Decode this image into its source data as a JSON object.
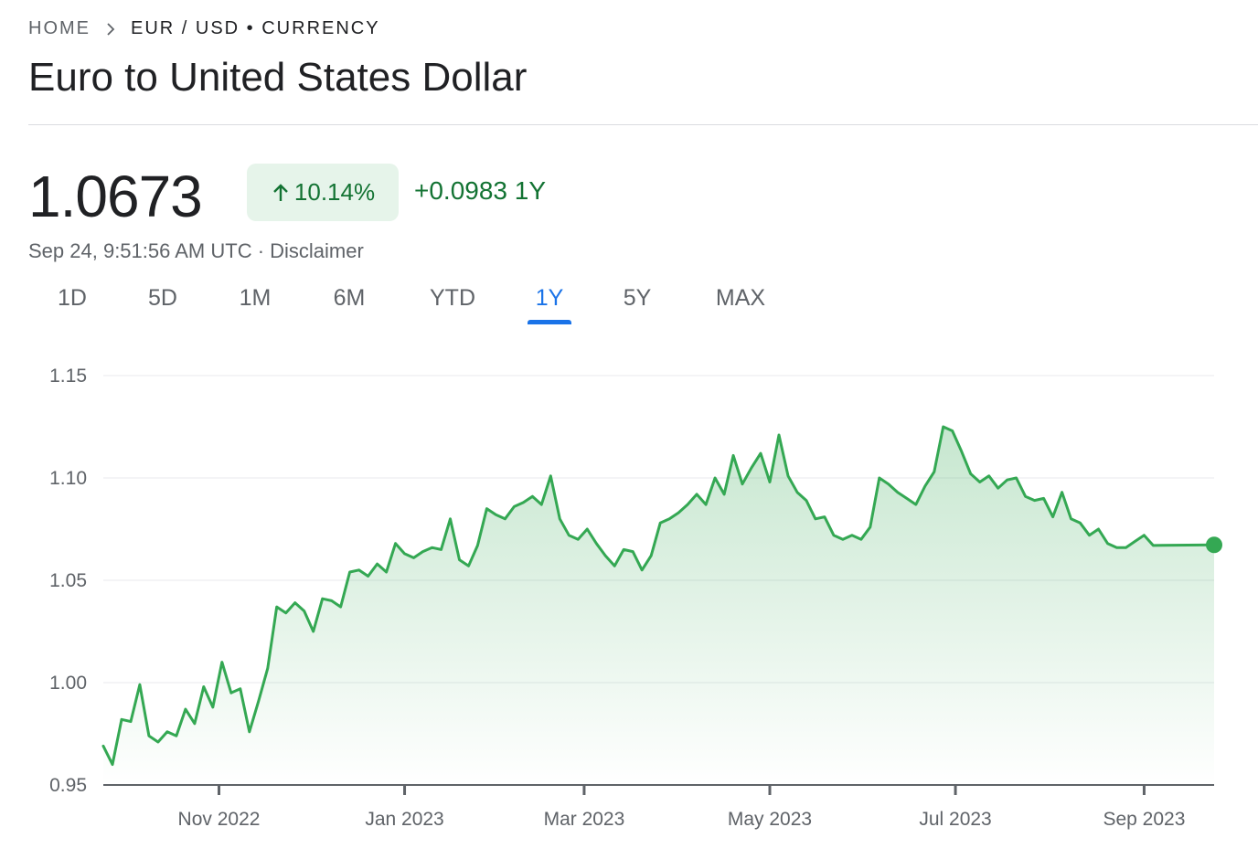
{
  "breadcrumb": {
    "home": "HOME",
    "current": "EUR / USD • CURRENCY"
  },
  "title": "Euro to United States Dollar",
  "quote": {
    "price": "1.0673",
    "change_percent": "10.14%",
    "change_abs": "+0.0983 1Y",
    "timestamp": "Sep 24, 9:51:56 AM UTC · ",
    "disclaimer": "Disclaimer"
  },
  "tabs": [
    {
      "label": "1D"
    },
    {
      "label": "5D"
    },
    {
      "label": "1M"
    },
    {
      "label": "6M"
    },
    {
      "label": "YTD"
    },
    {
      "label": "1Y"
    },
    {
      "label": "5Y"
    },
    {
      "label": "MAX"
    }
  ],
  "active_tab": "1Y",
  "colors": {
    "line": "#34a853",
    "positive_text": "#137333",
    "badge_bg": "#e6f4ea",
    "accent": "#1a73e8"
  },
  "icons": {
    "breadcrumb_separator": "chevron-right-icon",
    "change_direction": "arrow-up-icon"
  },
  "chart_data": {
    "type": "area",
    "title": "",
    "xlabel": "",
    "ylabel": "",
    "ylim": [
      0.95,
      1.15
    ],
    "yticks": [
      "1.15",
      "1.10",
      "1.05",
      "1.00",
      "0.95"
    ],
    "ytick_values": [
      1.15,
      1.1,
      1.05,
      1.0,
      0.95
    ],
    "xticks": [
      "Nov 2022",
      "Jan 2023",
      "Mar 2023",
      "May 2023",
      "Jul 2023",
      "Sep 2023"
    ],
    "xtick_dates": [
      "2022-11-01",
      "2023-01-01",
      "2023-03-01",
      "2023-05-01",
      "2023-07-01",
      "2023-09-01"
    ],
    "grid": true,
    "legend": "none",
    "series": [
      {
        "points": [
          [
            "2022-09-24",
            0.969
          ],
          [
            "2022-09-27",
            0.96
          ],
          [
            "2022-09-30",
            0.982
          ],
          [
            "2022-10-03",
            0.981
          ],
          [
            "2022-10-06",
            0.999
          ],
          [
            "2022-10-09",
            0.974
          ],
          [
            "2022-10-12",
            0.971
          ],
          [
            "2022-10-15",
            0.976
          ],
          [
            "2022-10-18",
            0.974
          ],
          [
            "2022-10-21",
            0.987
          ],
          [
            "2022-10-24",
            0.98
          ],
          [
            "2022-10-27",
            0.998
          ],
          [
            "2022-10-30",
            0.988
          ],
          [
            "2022-11-02",
            1.01
          ],
          [
            "2022-11-05",
            0.995
          ],
          [
            "2022-11-08",
            0.997
          ],
          [
            "2022-11-11",
            0.976
          ],
          [
            "2022-11-14",
            0.991
          ],
          [
            "2022-11-17",
            1.007
          ],
          [
            "2022-11-20",
            1.037
          ],
          [
            "2022-11-23",
            1.034
          ],
          [
            "2022-11-26",
            1.039
          ],
          [
            "2022-11-29",
            1.035
          ],
          [
            "2022-12-02",
            1.025
          ],
          [
            "2022-12-05",
            1.041
          ],
          [
            "2022-12-08",
            1.04
          ],
          [
            "2022-12-11",
            1.037
          ],
          [
            "2022-12-14",
            1.054
          ],
          [
            "2022-12-17",
            1.055
          ],
          [
            "2022-12-20",
            1.052
          ],
          [
            "2022-12-23",
            1.058
          ],
          [
            "2022-12-26",
            1.054
          ],
          [
            "2022-12-29",
            1.068
          ],
          [
            "2023-01-01",
            1.063
          ],
          [
            "2023-01-04",
            1.061
          ],
          [
            "2023-01-07",
            1.064
          ],
          [
            "2023-01-10",
            1.066
          ],
          [
            "2023-01-13",
            1.065
          ],
          [
            "2023-01-16",
            1.08
          ],
          [
            "2023-01-19",
            1.06
          ],
          [
            "2023-01-22",
            1.057
          ],
          [
            "2023-01-25",
            1.067
          ],
          [
            "2023-01-28",
            1.085
          ],
          [
            "2023-01-31",
            1.082
          ],
          [
            "2023-02-03",
            1.08
          ],
          [
            "2023-02-06",
            1.086
          ],
          [
            "2023-02-09",
            1.088
          ],
          [
            "2023-02-12",
            1.091
          ],
          [
            "2023-02-15",
            1.087
          ],
          [
            "2023-02-18",
            1.101
          ],
          [
            "2023-02-21",
            1.08
          ],
          [
            "2023-02-24",
            1.072
          ],
          [
            "2023-02-27",
            1.07
          ],
          [
            "2023-03-02",
            1.075
          ],
          [
            "2023-03-05",
            1.068
          ],
          [
            "2023-03-08",
            1.062
          ],
          [
            "2023-03-11",
            1.057
          ],
          [
            "2023-03-14",
            1.065
          ],
          [
            "2023-03-17",
            1.064
          ],
          [
            "2023-03-20",
            1.055
          ],
          [
            "2023-03-23",
            1.062
          ],
          [
            "2023-03-26",
            1.078
          ],
          [
            "2023-03-29",
            1.08
          ],
          [
            "2023-04-01",
            1.083
          ],
          [
            "2023-04-04",
            1.087
          ],
          [
            "2023-04-07",
            1.092
          ],
          [
            "2023-04-10",
            1.087
          ],
          [
            "2023-04-13",
            1.1
          ],
          [
            "2023-04-16",
            1.092
          ],
          [
            "2023-04-19",
            1.111
          ],
          [
            "2023-04-22",
            1.097
          ],
          [
            "2023-04-25",
            1.105
          ],
          [
            "2023-04-28",
            1.112
          ],
          [
            "2023-05-01",
            1.098
          ],
          [
            "2023-05-04",
            1.121
          ],
          [
            "2023-05-07",
            1.101
          ],
          [
            "2023-05-10",
            1.093
          ],
          [
            "2023-05-13",
            1.089
          ],
          [
            "2023-05-16",
            1.08
          ],
          [
            "2023-05-19",
            1.081
          ],
          [
            "2023-05-22",
            1.072
          ],
          [
            "2023-05-25",
            1.07
          ],
          [
            "2023-05-28",
            1.072
          ],
          [
            "2023-05-31",
            1.07
          ],
          [
            "2023-06-03",
            1.076
          ],
          [
            "2023-06-06",
            1.1
          ],
          [
            "2023-06-09",
            1.097
          ],
          [
            "2023-06-12",
            1.093
          ],
          [
            "2023-06-15",
            1.09
          ],
          [
            "2023-06-18",
            1.087
          ],
          [
            "2023-06-21",
            1.096
          ],
          [
            "2023-06-24",
            1.103
          ],
          [
            "2023-06-27",
            1.125
          ],
          [
            "2023-06-30",
            1.123
          ],
          [
            "2023-07-03",
            1.113
          ],
          [
            "2023-07-06",
            1.102
          ],
          [
            "2023-07-09",
            1.098
          ],
          [
            "2023-07-12",
            1.101
          ],
          [
            "2023-07-15",
            1.095
          ],
          [
            "2023-07-18",
            1.099
          ],
          [
            "2023-07-21",
            1.1
          ],
          [
            "2023-07-24",
            1.091
          ],
          [
            "2023-07-27",
            1.089
          ],
          [
            "2023-07-30",
            1.09
          ],
          [
            "2023-08-02",
            1.081
          ],
          [
            "2023-08-05",
            1.093
          ],
          [
            "2023-08-08",
            1.08
          ],
          [
            "2023-08-11",
            1.078
          ],
          [
            "2023-08-14",
            1.072
          ],
          [
            "2023-08-17",
            1.075
          ],
          [
            "2023-08-20",
            1.068
          ],
          [
            "2023-08-23",
            1.066
          ],
          [
            "2023-08-26",
            1.066
          ],
          [
            "2023-08-29",
            1.069
          ],
          [
            "2023-09-01",
            1.072
          ],
          [
            "2023-09-04",
            1.067
          ]
        ],
        "last_value": 1.0673
      }
    ]
  }
}
